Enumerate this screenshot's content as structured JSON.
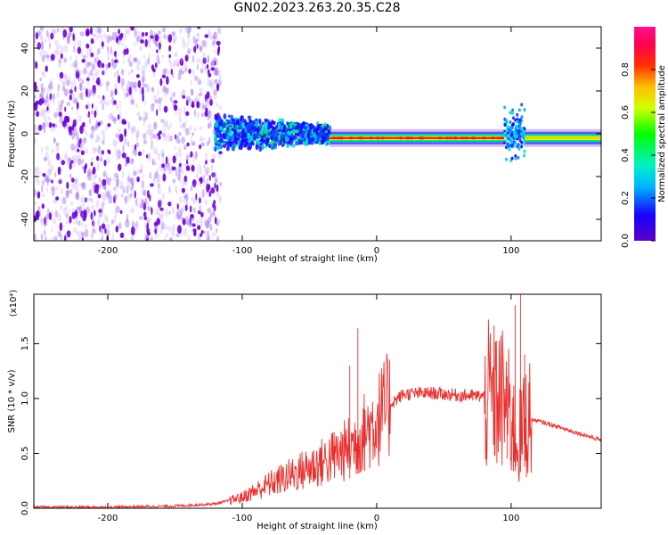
{
  "title": "GN02.2023.263.20.35.C28",
  "chart_data": [
    {
      "type": "heatmap",
      "xlabel": "Height of straight line (km)",
      "ylabel": "Frequency (Hz)",
      "xlim": [
        -255,
        167
      ],
      "ylim": [
        -50,
        50
      ],
      "xticks": [
        -200,
        -100,
        0,
        100
      ],
      "yticks": [
        -40,
        -20,
        0,
        20,
        40
      ],
      "colorbar": {
        "label": "Normalized spectral amplitude",
        "range": [
          0.0,
          1.0
        ],
        "ticks": [
          0.0,
          0.2,
          0.4,
          0.6,
          0.8
        ],
        "colormap": "rainbow (purple-blue-cyan-green-yellow-red-magenta)"
      },
      "regions": [
        {
          "x_range": [
            -255,
            -120
          ],
          "description": "broadband noise",
          "amplitude": 0.05
        },
        {
          "x_range": [
            -120,
            -35
          ],
          "freq_center": 0,
          "freq_halfwidth": 8,
          "amplitude": 0.25
        },
        {
          "x_range": [
            -35,
            95
          ],
          "freq_center": -2,
          "freq_halfwidth": 2,
          "amplitude": 0.85
        },
        {
          "x_range": [
            95,
            110
          ],
          "freq_center": 0,
          "freq_halfwidth": 15,
          "amplitude": 0.25
        },
        {
          "x_range": [
            110,
            167
          ],
          "freq_center": -2,
          "freq_halfwidth": 2,
          "amplitude": 0.7
        }
      ]
    },
    {
      "type": "line",
      "xlabel": "Height of straight line (km)",
      "ylabel": "SNR (10 * v/v)",
      "y_multiplier": "(x10⁴)",
      "xlim": [
        -255,
        167
      ],
      "ylim": [
        0,
        1.95
      ],
      "xticks": [
        -200,
        -100,
        0,
        100
      ],
      "yticks": [
        0.0,
        0.5,
        1.0,
        1.5
      ],
      "series": [
        {
          "color": "#e8312f",
          "x": [
            -255,
            -200,
            -150,
            -120,
            -100,
            -80,
            -60,
            -40,
            -20,
            -10,
            0,
            10,
            20,
            40,
            60,
            80,
            95,
            105,
            112,
            130,
            167
          ],
          "y": [
            0.01,
            0.01,
            0.02,
            0.04,
            0.1,
            0.22,
            0.32,
            0.42,
            0.55,
            0.68,
            0.8,
            0.95,
            1.04,
            1.05,
            1.03,
            1.02,
            0.98,
            0.6,
            0.82,
            0.76,
            0.62
          ]
        }
      ],
      "spikes": [
        {
          "x": -14,
          "y": 1.64
        },
        {
          "x": -20,
          "y": 1.3
        },
        {
          "x": 97,
          "y": 1.2
        },
        {
          "x": 103,
          "y": 1.85
        },
        {
          "x": 107,
          "y": 1.95
        },
        {
          "x": 110,
          "y": 1.4
        }
      ]
    }
  ]
}
